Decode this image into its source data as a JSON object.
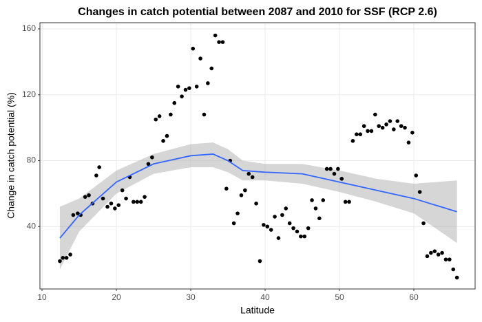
{
  "chart_data": {
    "type": "scatter",
    "title": "Changes in catch potential between 2087 and 2010 for SSF (RCP 2.6)",
    "x_label": "Latitude",
    "y_label": "Change in catch potential (%)",
    "xlim": [
      9.72,
      68.24
    ],
    "ylim": [
      2.1,
      163.75
    ],
    "xticks": [
      10,
      20,
      30,
      40,
      50,
      60
    ],
    "yticks": [
      40,
      80,
      120,
      160
    ],
    "grid": true,
    "color": "#000000",
    "x": [
      12.4,
      12.8,
      13.3,
      13.8,
      14.2,
      14.8,
      15.2,
      15.8,
      16.3,
      16.8,
      17.3,
      17.7,
      18.2,
      18.8,
      19.3,
      19.8,
      20.3,
      20.8,
      21.3,
      21.8,
      22.3,
      22.8,
      23.3,
      23.8,
      24.3,
      24.8,
      25.3,
      25.8,
      26.3,
      26.8,
      27.3,
      27.8,
      28.3,
      28.8,
      29.3,
      29.8,
      30.3,
      30.8,
      31.3,
      31.8,
      32.3,
      32.8,
      33.3,
      33.8,
      34.3,
      34.8,
      35.3,
      35.8,
      36.3,
      36.8,
      37.3,
      37.8,
      38.3,
      38.8,
      39.3,
      39.8,
      40.3,
      40.8,
      41.3,
      41.8,
      42.3,
      42.8,
      43.3,
      43.8,
      44.3,
      44.8,
      45.3,
      45.8,
      46.3,
      46.8,
      47.3,
      47.8,
      48.3,
      48.8,
      49.3,
      49.8,
      50.3,
      50.8,
      51.3,
      51.8,
      52.3,
      52.8,
      53.3,
      53.8,
      54.3,
      54.8,
      55.3,
      55.8,
      56.3,
      56.8,
      57.3,
      57.8,
      58.3,
      58.8,
      59.3,
      59.8,
      60.3,
      60.8,
      61.3,
      61.8,
      62.3,
      62.8,
      63.3,
      63.8,
      64.3,
      64.8,
      65.3,
      65.8
    ],
    "values": [
      19,
      21,
      21,
      23,
      47,
      48,
      47,
      58,
      59,
      54,
      71,
      76,
      57,
      52,
      54,
      51,
      53,
      62,
      57,
      70,
      55,
      55,
      55,
      58,
      78,
      82,
      105,
      107,
      92,
      95,
      108,
      115,
      125,
      119,
      123,
      124,
      148,
      125,
      142,
      108,
      127,
      136,
      156,
      152,
      152,
      63,
      80,
      42,
      48,
      59,
      62,
      72,
      70,
      54,
      19,
      41,
      40,
      38,
      46,
      33,
      47,
      51,
      42,
      39,
      37,
      34,
      34,
      39,
      56,
      51,
      45,
      56,
      75,
      75,
      72,
      75,
      69,
      55,
      55,
      92,
      96,
      96,
      101,
      98,
      98,
      108,
      101,
      100,
      102,
      104,
      99,
      104,
      101,
      100,
      91,
      97,
      71,
      61,
      42,
      22,
      24,
      25,
      23,
      24,
      20,
      20,
      14,
      9
    ],
    "smooth": {
      "color": "#3366ff",
      "band_color": "#999999",
      "x": [
        12.4,
        15,
        20,
        25,
        30,
        33,
        35,
        37,
        40,
        45,
        50,
        55,
        60,
        65.8
      ],
      "values": [
        33,
        47,
        67,
        78,
        83,
        84,
        80,
        74,
        73,
        72,
        67,
        62,
        57,
        49
      ],
      "lower": [
        14,
        37,
        60,
        72,
        76,
        76,
        73,
        68,
        68,
        66,
        61,
        55,
        48,
        30
      ],
      "upper": [
        52,
        57,
        74,
        84,
        90,
        91,
        87,
        80,
        78,
        78,
        74,
        69,
        66,
        68
      ]
    }
  }
}
